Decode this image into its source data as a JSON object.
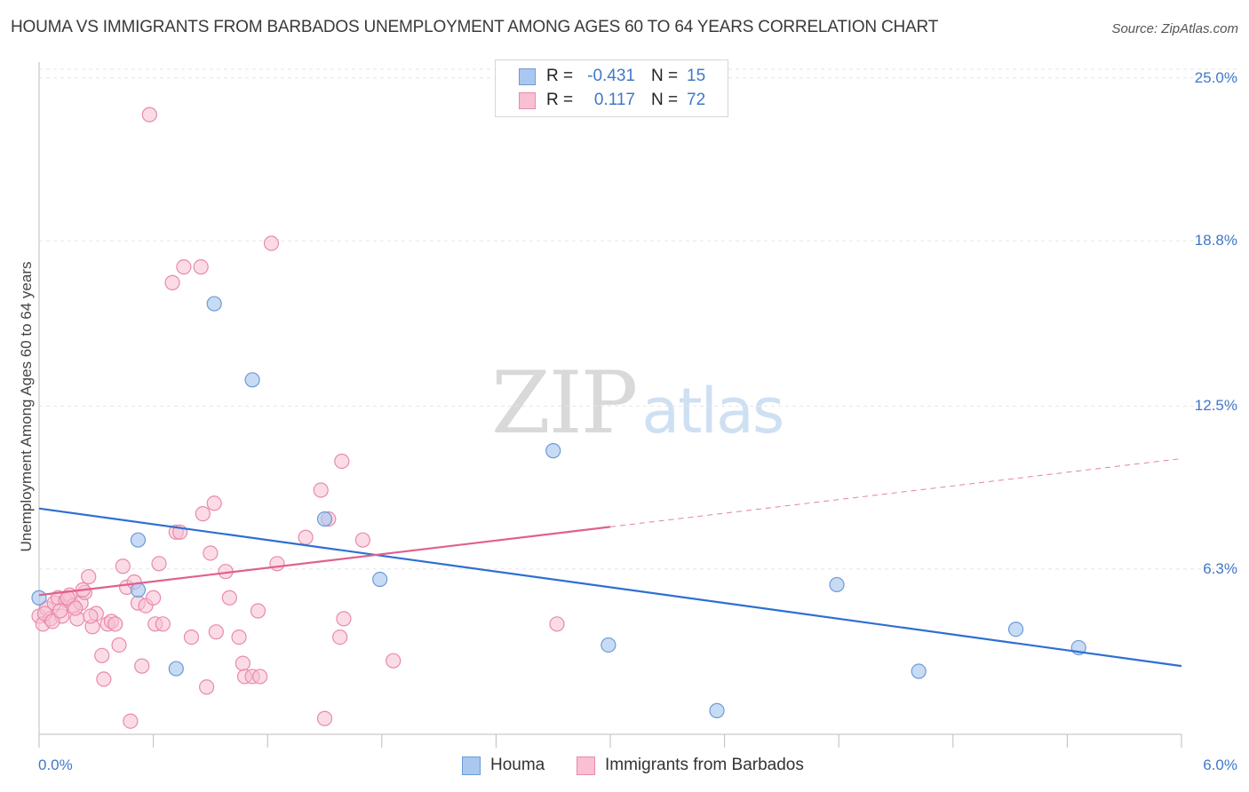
{
  "title": "HOUMA VS IMMIGRANTS FROM BARBADOS UNEMPLOYMENT AMONG AGES 60 TO 64 YEARS CORRELATION CHART",
  "source": "Source: ZipAtlas.com",
  "watermark": {
    "zip": "ZIP",
    "atlas": "atlas"
  },
  "legend": {
    "houma": {
      "r_label": "R =",
      "r_value": "-0.431",
      "n_label": "N =",
      "n_value": "15"
    },
    "barbados": {
      "r_label": "R =",
      "r_value": "0.117",
      "n_label": "N =",
      "n_value": "72"
    }
  },
  "colors": {
    "houma_fill": "#aac8ef",
    "houma_stroke": "#6c9bd6",
    "houma_line": "#2f6fd1",
    "barbados_fill": "#f8c0d2",
    "barbados_stroke": "#e88aa9",
    "barbados_line": "#e0608e",
    "axis_tick_text": "#3f78c8",
    "grid": "#e6e6e6"
  },
  "chart_data": {
    "type": "scatter",
    "title": "HOUMA VS IMMIGRANTS FROM BARBADOS UNEMPLOYMENT AMONG AGES 60 TO 64 YEARS CORRELATION CHART",
    "xlabel": "",
    "ylabel": "Unemployment Among Ages 60 to 64 years",
    "xlim": [
      0,
      6.0
    ],
    "ylim": [
      0,
      25.6
    ],
    "x_tick_labels": [
      "0.0%",
      "6.0%"
    ],
    "y_ticks": [
      6.3,
      12.5,
      18.8,
      25.0
    ],
    "y_tick_labels": [
      "6.3%",
      "12.5%",
      "18.8%",
      "25.0%"
    ],
    "grid": true,
    "legend_position": "top-center",
    "series": [
      {
        "name": "Houma",
        "points": [
          [
            0.0,
            5.2
          ],
          [
            0.52,
            7.4
          ],
          [
            0.52,
            5.5
          ],
          [
            0.72,
            2.5
          ],
          [
            0.92,
            16.4
          ],
          [
            1.12,
            13.5
          ],
          [
            1.5,
            8.2
          ],
          [
            1.79,
            5.9
          ],
          [
            2.7,
            10.8
          ],
          [
            2.99,
            3.4
          ],
          [
            3.56,
            0.9
          ],
          [
            4.19,
            5.7
          ],
          [
            4.62,
            2.4
          ],
          [
            5.13,
            4.0
          ],
          [
            5.46,
            3.3
          ]
        ],
        "trend": {
          "x": [
            0.0,
            6.0
          ],
          "y": [
            8.6,
            2.6
          ]
        }
      },
      {
        "name": "Immigrants from Barbados",
        "points": [
          [
            0.0,
            4.5
          ],
          [
            0.02,
            4.2
          ],
          [
            0.04,
            4.8
          ],
          [
            0.06,
            4.4
          ],
          [
            0.08,
            5.0
          ],
          [
            0.1,
            5.2
          ],
          [
            0.12,
            4.5
          ],
          [
            0.14,
            5.1
          ],
          [
            0.16,
            5.3
          ],
          [
            0.18,
            4.9
          ],
          [
            0.2,
            4.4
          ],
          [
            0.22,
            5.0
          ],
          [
            0.24,
            5.4
          ],
          [
            0.26,
            6.0
          ],
          [
            0.28,
            4.1
          ],
          [
            0.3,
            4.6
          ],
          [
            0.33,
            3.0
          ],
          [
            0.34,
            2.1
          ],
          [
            0.36,
            4.2
          ],
          [
            0.38,
            4.3
          ],
          [
            0.4,
            4.2
          ],
          [
            0.42,
            3.4
          ],
          [
            0.44,
            6.4
          ],
          [
            0.46,
            5.6
          ],
          [
            0.48,
            0.5
          ],
          [
            0.5,
            5.8
          ],
          [
            0.52,
            5.0
          ],
          [
            0.54,
            2.6
          ],
          [
            0.56,
            4.9
          ],
          [
            0.58,
            23.6
          ],
          [
            0.6,
            5.2
          ],
          [
            0.61,
            4.2
          ],
          [
            0.63,
            6.5
          ],
          [
            0.65,
            4.2
          ],
          [
            0.7,
            17.2
          ],
          [
            0.72,
            7.7
          ],
          [
            0.74,
            7.7
          ],
          [
            0.76,
            17.8
          ],
          [
            0.8,
            3.7
          ],
          [
            0.85,
            17.8
          ],
          [
            0.86,
            8.4
          ],
          [
            0.88,
            1.8
          ],
          [
            0.9,
            6.9
          ],
          [
            0.92,
            8.8
          ],
          [
            0.93,
            3.9
          ],
          [
            0.98,
            6.2
          ],
          [
            1.0,
            5.2
          ],
          [
            1.05,
            3.7
          ],
          [
            1.07,
            2.7
          ],
          [
            1.08,
            2.2
          ],
          [
            1.12,
            2.2
          ],
          [
            1.15,
            4.7
          ],
          [
            1.16,
            2.2
          ],
          [
            1.22,
            18.7
          ],
          [
            1.25,
            6.5
          ],
          [
            1.4,
            7.5
          ],
          [
            1.48,
            9.3
          ],
          [
            1.5,
            0.6
          ],
          [
            1.52,
            8.2
          ],
          [
            1.58,
            3.7
          ],
          [
            1.59,
            10.4
          ],
          [
            1.6,
            4.4
          ],
          [
            1.7,
            7.4
          ],
          [
            1.86,
            2.8
          ],
          [
            2.72,
            4.2
          ],
          [
            0.03,
            4.6
          ],
          [
            0.07,
            4.3
          ],
          [
            0.11,
            4.7
          ],
          [
            0.15,
            5.2
          ],
          [
            0.19,
            4.8
          ],
          [
            0.23,
            5.5
          ],
          [
            0.27,
            4.5
          ]
        ],
        "trend_solid": {
          "x": [
            0.0,
            3.0
          ],
          "y": [
            5.3,
            7.9
          ]
        },
        "trend_dashed": {
          "x": [
            3.0,
            6.0
          ],
          "y": [
            7.9,
            10.5
          ]
        }
      }
    ]
  },
  "bottom_legend": {
    "houma": "Houma",
    "barbados": "Immigrants from Barbados"
  }
}
